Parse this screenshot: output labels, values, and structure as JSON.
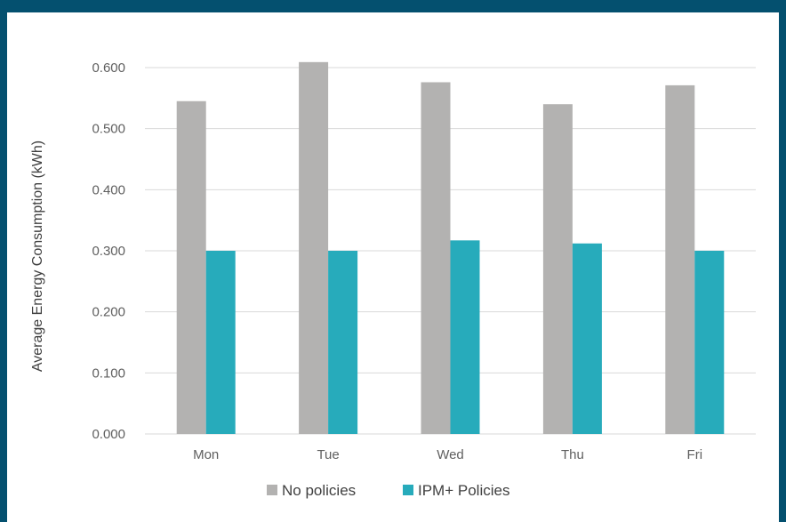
{
  "chart_data": {
    "type": "bar",
    "categories": [
      "Mon",
      "Tue",
      "Wed",
      "Thu",
      "Fri"
    ],
    "series": [
      {
        "name": "No policies",
        "color": "#b3b2b1",
        "values": [
          0.545,
          0.609,
          0.576,
          0.54,
          0.571
        ]
      },
      {
        "name": "IPM+ Policies",
        "color": "#27abbb",
        "values": [
          0.3,
          0.3,
          0.317,
          0.312,
          0.3
        ]
      }
    ],
    "title": "",
    "xlabel": "",
    "ylabel": "Average Energy Consumption (kWh)",
    "ylim": [
      0,
      0.6
    ],
    "yticks": [
      "0.000",
      "0.100",
      "0.200",
      "0.300",
      "0.400",
      "0.500",
      "0.600"
    ],
    "yticks_values": [
      0,
      0.1,
      0.2,
      0.3,
      0.4,
      0.5,
      0.6
    ],
    "grid": true,
    "legend_position": "bottom"
  },
  "colors": {
    "border": "#04506f",
    "background": "#ffffff",
    "gridline": "#d9d9d9"
  }
}
